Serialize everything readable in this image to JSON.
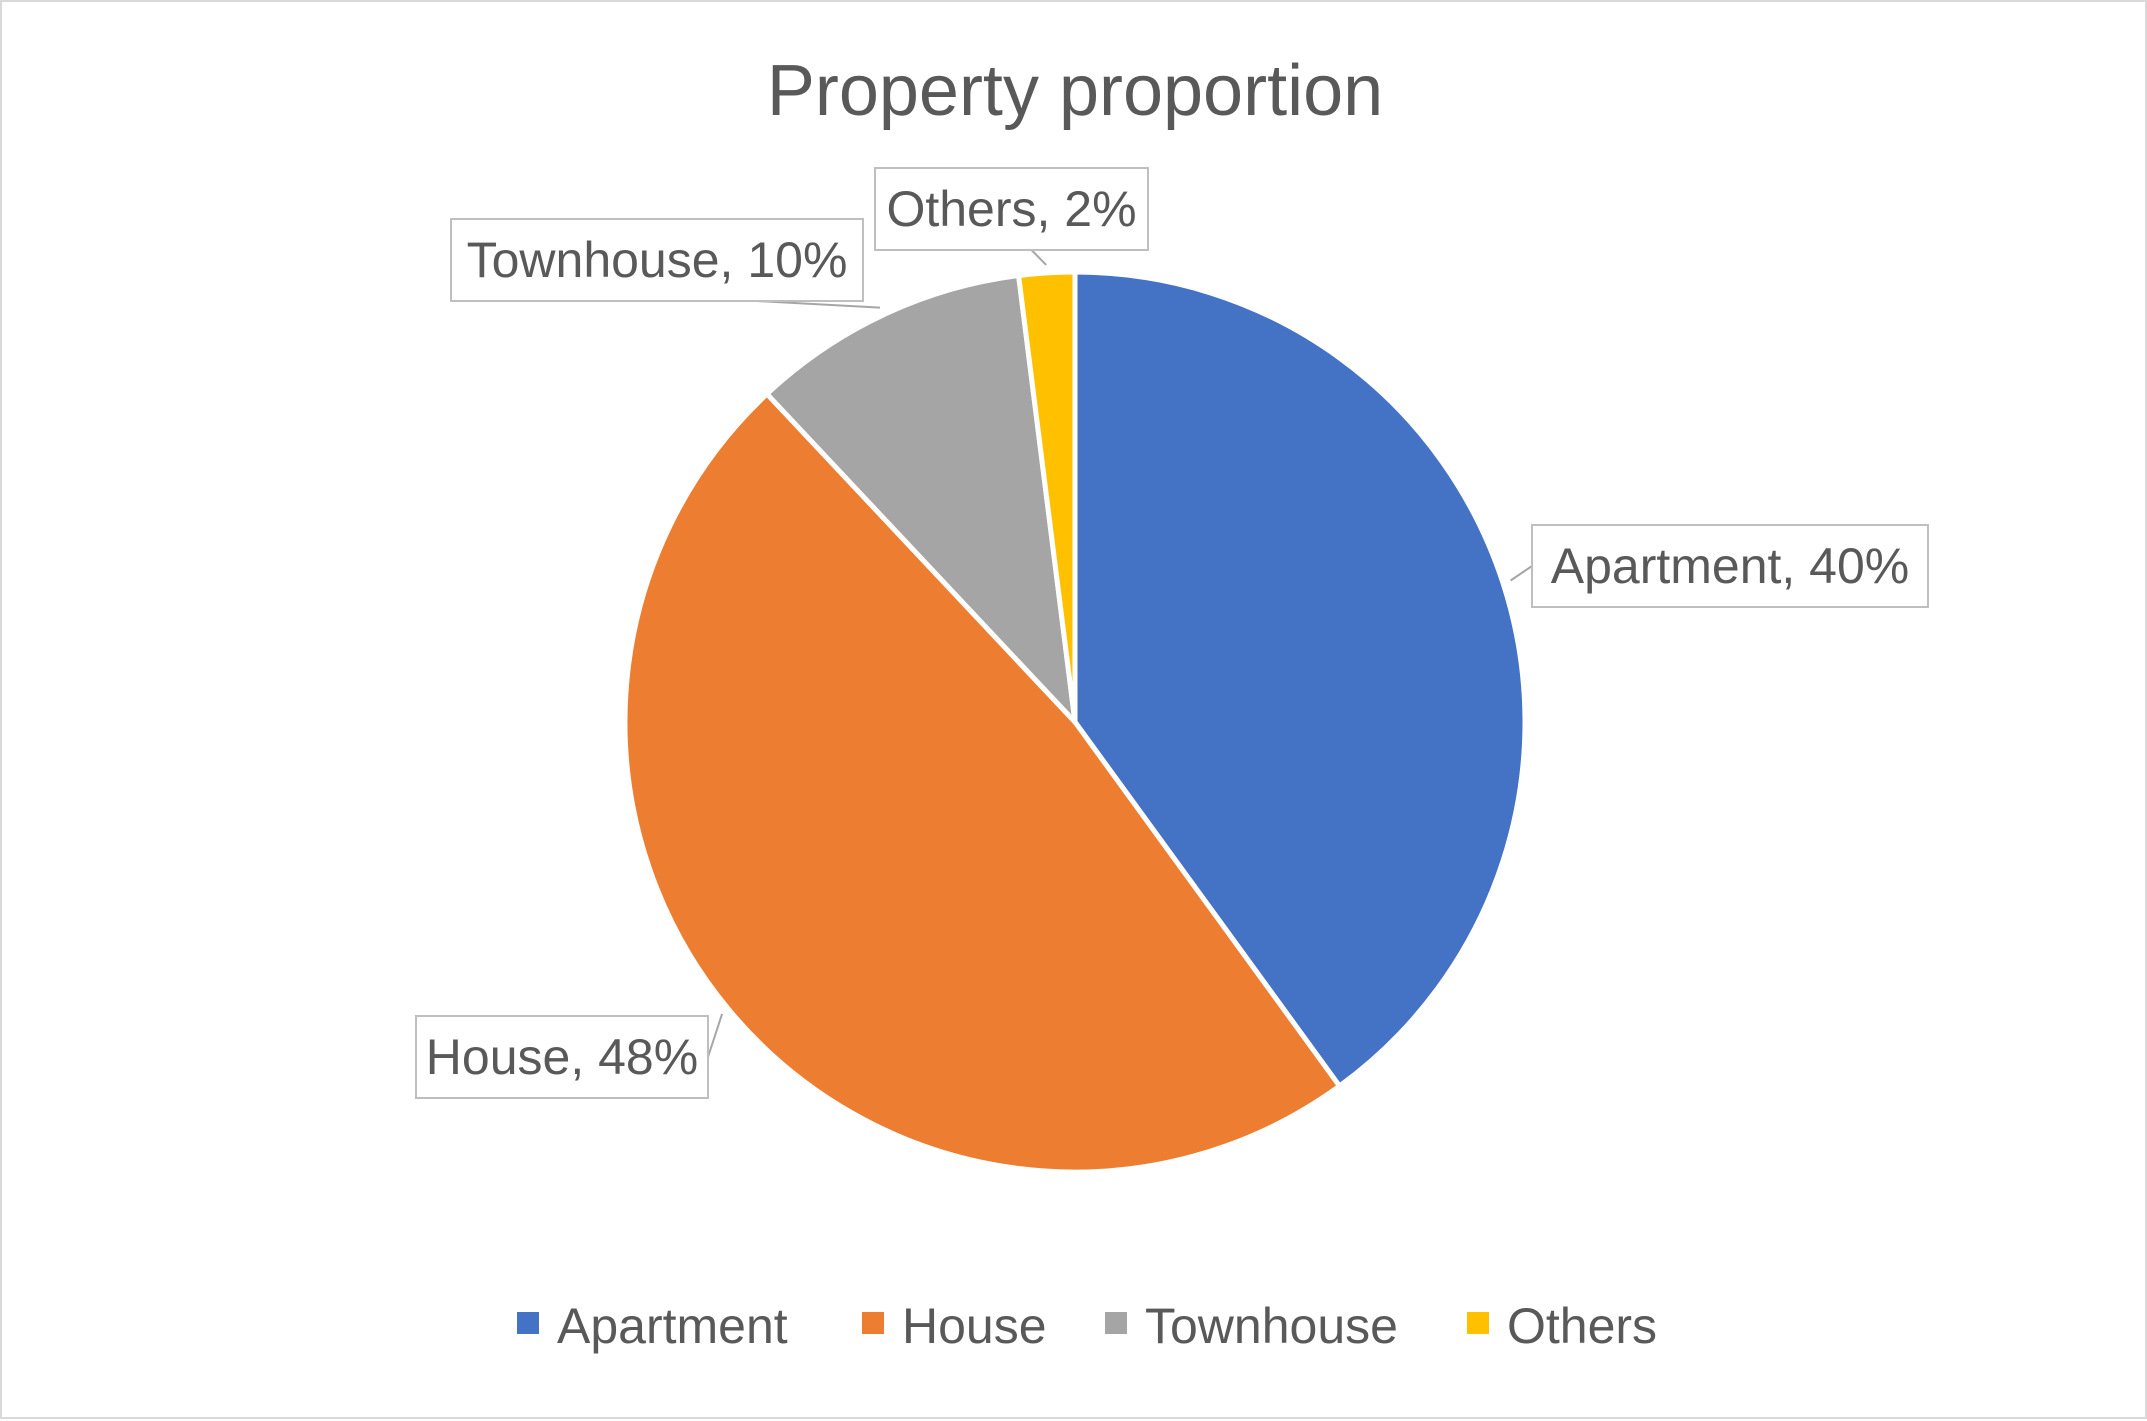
{
  "chart_data": {
    "type": "pie",
    "title": "Property proportion",
    "start_angle_deg": 0,
    "direction": "clockwise",
    "slices": [
      {
        "label": "Apartment",
        "value": 40,
        "data_label": "Apartment, 40%",
        "color": "#4472C4"
      },
      {
        "label": "House",
        "value": 48,
        "data_label": "House, 48%",
        "color": "#ED7D31"
      },
      {
        "label": "Townhouse",
        "value": 10,
        "data_label": "Townhouse, 10%",
        "color": "#A5A5A5"
      },
      {
        "label": "Others",
        "value": 2,
        "data_label": "Others, 2%",
        "color": "#FFC000"
      }
    ],
    "legend": {
      "position": "bottom",
      "items": [
        "Apartment",
        "House",
        "Townhouse",
        "Others"
      ]
    }
  }
}
